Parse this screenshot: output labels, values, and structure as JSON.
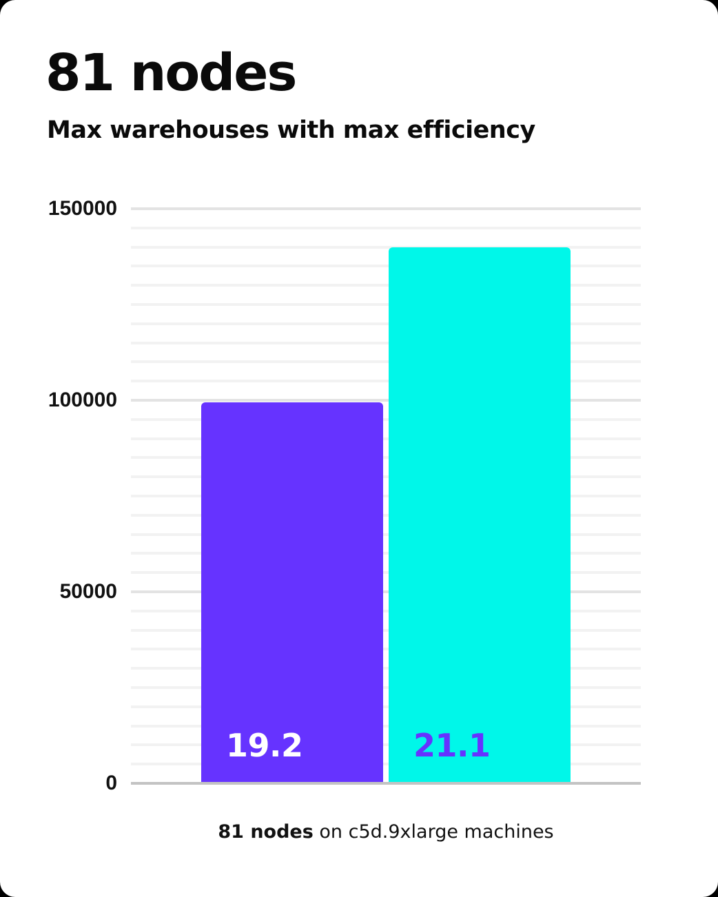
{
  "header": {
    "title": "81 nodes",
    "subtitle": "Max warehouses with max efficiency"
  },
  "caption": {
    "bold": "81 nodes",
    "rest": " on c5d.9xlarge machines"
  },
  "colors": {
    "page_background": "#000000",
    "card_background": "#ffffff",
    "purple": "#6633ff",
    "cyan": "#00f7e9",
    "grid_minor": "#f2f2f2",
    "grid_major": "#e3e3e3",
    "axis_line": "#c3c3c3",
    "text": "#0a0a0a"
  },
  "chart_data": {
    "type": "bar",
    "title": "81 nodes",
    "subtitle": "Max warehouses with max efficiency",
    "caption": "81 nodes on c5d.9xlarge machines",
    "categories": [
      "19.2",
      "21.1"
    ],
    "values": [
      99500,
      140000
    ],
    "bars": [
      {
        "label": "19.2",
        "value": 99500,
        "color": "#6633ff",
        "label_color": "#ffffff"
      },
      {
        "label": "21.1",
        "value": 140000,
        "color": "#00f7e9",
        "label_color": "#6633ff"
      }
    ],
    "xlabel": "",
    "ylabel": "",
    "ylim": [
      0,
      150000
    ],
    "yticks": [
      0,
      50000,
      100000,
      150000
    ],
    "grid_minor_step": 5000,
    "grid_major_step": 50000,
    "grid": "horizontal",
    "legend": "none"
  }
}
